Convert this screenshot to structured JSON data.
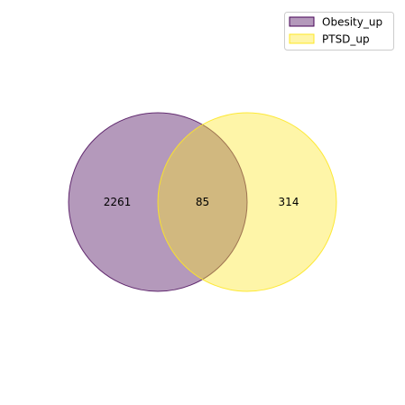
{
  "diagram": {
    "type": "venn2",
    "sets": [
      {
        "name": "Obesity_up",
        "color": "#440154",
        "fill_opacity": 0.4,
        "edge_color": "#440154"
      },
      {
        "name": "PTSD_up",
        "color": "#fde725",
        "fill_opacity": 0.4,
        "edge_color": "#fde725"
      }
    ],
    "regions": {
      "only_a": "2261",
      "intersection": "85",
      "only_b": "314"
    },
    "legend": {
      "placement": "top-right"
    }
  }
}
